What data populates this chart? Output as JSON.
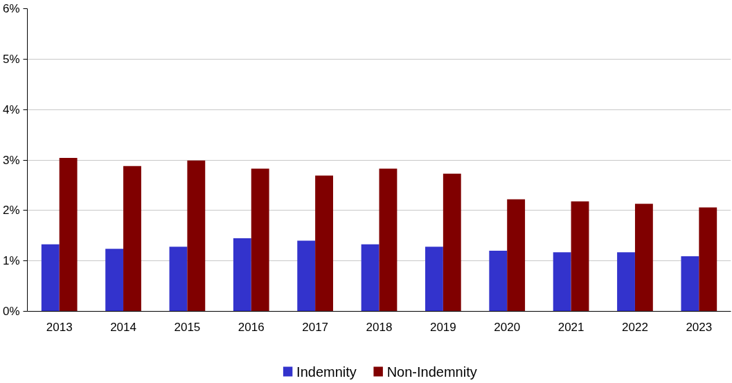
{
  "chart_data": {
    "type": "bar",
    "categories": [
      "2013",
      "2014",
      "2015",
      "2016",
      "2017",
      "2018",
      "2019",
      "2020",
      "2021",
      "2022",
      "2023"
    ],
    "series": [
      {
        "name": "Indemnity",
        "color": "#3333cc",
        "values": [
          1.33,
          1.24,
          1.28,
          1.45,
          1.4,
          1.33,
          1.28,
          1.2,
          1.17,
          1.17,
          1.09
        ]
      },
      {
        "name": "Non-Indemnity",
        "color": "#800000",
        "values": [
          3.04,
          2.88,
          2.99,
          2.83,
          2.69,
          2.83,
          2.73,
          2.22,
          2.18,
          2.13,
          2.06
        ]
      }
    ],
    "ylim": [
      0,
      6
    ],
    "yticks": [
      {
        "value": 0,
        "label": "0%"
      },
      {
        "value": 1,
        "label": "1%"
      },
      {
        "value": 2,
        "label": "2%"
      },
      {
        "value": 3,
        "label": "3%"
      },
      {
        "value": 4,
        "label": "4%"
      },
      {
        "value": 5,
        "label": "5%"
      },
      {
        "value": 6,
        "label": "6%"
      }
    ],
    "grid": "y",
    "legend": "bottom"
  }
}
